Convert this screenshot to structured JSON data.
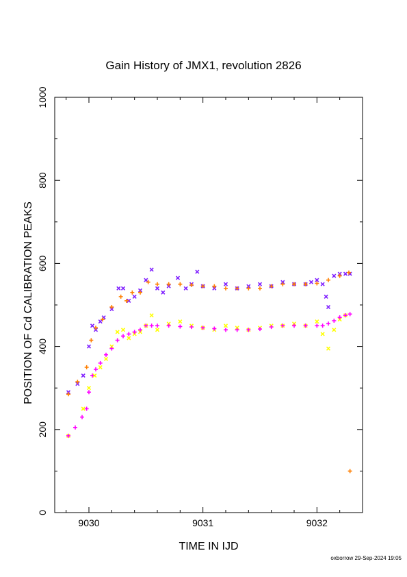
{
  "chart_data": {
    "type": "scatter",
    "title": "Gain History of JMX1, revolution 2826",
    "xlabel": "TIME IN IJD",
    "ylabel": "POSITION OF Cd CALIBRATION PEAKS",
    "xlim": [
      9029.7,
      9032.4
    ],
    "ylim": [
      0,
      1000
    ],
    "xticks": [
      9030,
      9031,
      9032
    ],
    "yticks": [
      0,
      200,
      400,
      600,
      800,
      1000
    ],
    "grid": false,
    "legend": "none",
    "series": [
      {
        "marker": "x",
        "color": "#7f1fff",
        "x": [
          9029.82,
          9029.9,
          9029.95,
          9030.0,
          9030.03,
          9030.06,
          9030.1,
          9030.13,
          9030.2,
          9030.26,
          9030.3,
          9030.35,
          9030.4,
          9030.45,
          9030.5,
          9030.55,
          9030.6,
          9030.65,
          9030.7,
          9030.78,
          9030.85,
          9030.9,
          9030.95,
          9031.0,
          9031.1,
          9031.2,
          9031.3,
          9031.4,
          9031.5,
          9031.6,
          9031.7,
          9031.8,
          9031.9,
          9031.95,
          9032.0,
          9032.05,
          9032.08,
          9032.1,
          9032.15,
          9032.2,
          9032.25,
          9032.29
        ],
        "y": [
          290,
          310,
          330,
          400,
          450,
          440,
          460,
          470,
          490,
          540,
          540,
          510,
          520,
          535,
          560,
          585,
          540,
          530,
          545,
          565,
          540,
          550,
          580,
          545,
          540,
          550,
          540,
          545,
          550,
          545,
          555,
          550,
          550,
          555,
          560,
          550,
          520,
          495,
          570,
          575,
          575,
          575
        ]
      },
      {
        "marker": "+",
        "color": "#ff7f00",
        "x": [
          9029.82,
          9029.9,
          9029.98,
          9030.02,
          9030.06,
          9030.12,
          9030.2,
          9030.28,
          9030.33,
          9030.38,
          9030.45,
          9030.52,
          9030.6,
          9030.7,
          9030.8,
          9030.9,
          9031.0,
          9031.1,
          9031.2,
          9031.3,
          9031.4,
          9031.5,
          9031.6,
          9031.7,
          9031.8,
          9031.9,
          9032.0,
          9032.1,
          9032.2,
          9032.28,
          9032.29
        ],
        "y": [
          285,
          315,
          350,
          415,
          445,
          465,
          495,
          520,
          510,
          530,
          530,
          555,
          550,
          550,
          550,
          548,
          545,
          545,
          540,
          540,
          540,
          540,
          545,
          550,
          550,
          550,
          552,
          560,
          570,
          578,
          100
        ]
      },
      {
        "marker": "x",
        "color": "#ffff00",
        "x": [
          9029.82,
          9029.95,
          9030.0,
          9030.05,
          9030.1,
          9030.15,
          9030.2,
          9030.25,
          9030.3,
          9030.35,
          9030.4,
          9030.45,
          9030.5,
          9030.55,
          9030.6,
          9030.7,
          9030.8,
          9030.9,
          9031.0,
          9031.1,
          9031.2,
          9031.3,
          9031.4,
          9031.5,
          9031.6,
          9031.7,
          9031.8,
          9031.9,
          9032.0,
          9032.05,
          9032.1,
          9032.15,
          9032.2,
          9032.25
        ],
        "y": [
          185,
          250,
          300,
          330,
          350,
          370,
          400,
          435,
          440,
          420,
          430,
          435,
          450,
          475,
          440,
          455,
          460,
          450,
          445,
          440,
          450,
          445,
          440,
          445,
          450,
          450,
          455,
          450,
          460,
          430,
          395,
          440,
          465,
          475
        ]
      },
      {
        "marker": "+",
        "color": "#ff00ff",
        "x": [
          9029.82,
          9029.88,
          9029.94,
          9029.98,
          9030.0,
          9030.03,
          9030.06,
          9030.1,
          9030.15,
          9030.2,
          9030.25,
          9030.3,
          9030.35,
          9030.4,
          9030.45,
          9030.5,
          9030.55,
          9030.6,
          9030.7,
          9030.8,
          9030.9,
          9031.0,
          9031.1,
          9031.2,
          9031.3,
          9031.4,
          9031.5,
          9031.6,
          9031.7,
          9031.8,
          9031.9,
          9032.0,
          9032.05,
          9032.1,
          9032.15,
          9032.2,
          9032.25,
          9032.29
        ],
        "y": [
          185,
          205,
          230,
          250,
          290,
          330,
          345,
          360,
          380,
          395,
          415,
          425,
          430,
          435,
          440,
          450,
          450,
          450,
          450,
          448,
          447,
          445,
          443,
          440,
          440,
          440,
          442,
          447,
          450,
          450,
          450,
          450,
          450,
          455,
          462,
          470,
          475,
          478
        ]
      }
    ]
  },
  "footer": "oxborrow 29-Sep-2024 19:05"
}
